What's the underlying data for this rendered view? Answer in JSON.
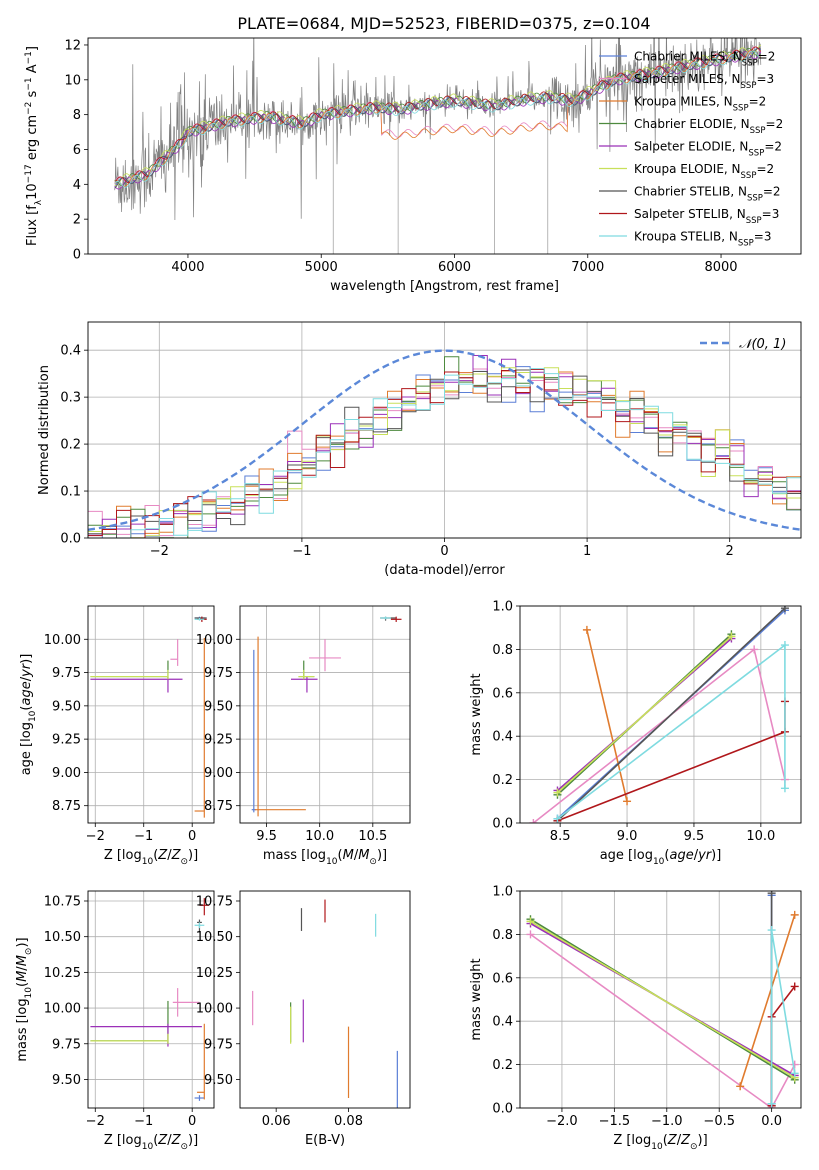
{
  "title": "PLATE=0684, MJD=52523, FIBERID=0375, z=0.104",
  "series": [
    {
      "name": "Chabrier MILES, N$_{SSP}$=2",
      "label": "Chabrier MILES, N",
      "sub": "SSP",
      "n": "=2",
      "color": "#5b7fd6"
    },
    {
      "name": "Salpeter MILES, N$_{SSP}$=3",
      "label": "Salpeter MILES, N",
      "sub": "SSP",
      "n": "=3",
      "color": "#e78ac3"
    },
    {
      "name": "Kroupa MILES, N$_{SSP}$=2",
      "label": "Kroupa MILES, N",
      "sub": "SSP",
      "n": "=2",
      "color": "#e07b2e"
    },
    {
      "name": "Chabrier ELODIE, N$_{SSP}$=2",
      "label": "Chabrier ELODIE, N",
      "sub": "SSP",
      "n": "=2",
      "color": "#4d8a3e"
    },
    {
      "name": "Salpeter ELODIE, N$_{SSP}$=2",
      "label": "Salpeter ELODIE, N",
      "sub": "SSP",
      "n": "=2",
      "color": "#9b30b8"
    },
    {
      "name": "Kroupa ELODIE, N$_{SSP}$=2",
      "label": "Kroupa ELODIE, N",
      "sub": "SSP",
      "n": "=2",
      "color": "#c8e05a"
    },
    {
      "name": "Chabrier STELIB, N$_{SSP}$=2",
      "label": "Chabrier STELIB, N",
      "sub": "SSP",
      "n": "=2",
      "color": "#555555"
    },
    {
      "name": "Salpeter STELIB, N$_{SSP}$=3",
      "label": "Salpeter STELIB, N",
      "sub": "SSP",
      "n": "=3",
      "color": "#b0171b"
    },
    {
      "name": "Kroupa STELIB, N$_{SSP}$=3",
      "label": "Kroupa STELIB, N",
      "sub": "SSP",
      "n": "=3",
      "color": "#7fdbe0"
    }
  ],
  "chart_data": [
    {
      "id": "spectrum",
      "type": "line",
      "xlabel": "wavelength [Angstrom, rest frame]",
      "ylabel": "Flux [f_λ10^-17 erg cm^-2 s^-1 A^-1]",
      "xlim": [
        3250,
        8600
      ],
      "ylim": [
        0,
        12.4
      ],
      "xticks": [
        4000,
        5000,
        6000,
        7000,
        8000
      ],
      "yticks": [
        0,
        2,
        4,
        6,
        8,
        10,
        12
      ],
      "grid": false,
      "legend": "top-right",
      "data_anchor": {
        "x": [
          3450,
          3700,
          3950,
          4000,
          4300,
          4600,
          4860,
          5000,
          5200,
          5400,
          5600,
          5800,
          6000,
          6300,
          6560,
          6700,
          6900,
          7200,
          7500,
          7800,
          8000,
          8200,
          8300
        ],
        "y": [
          4.0,
          4.6,
          6.4,
          7.0,
          7.6,
          7.9,
          7.5,
          8.0,
          8.2,
          8.4,
          8.3,
          8.6,
          8.8,
          8.5,
          8.9,
          9.0,
          8.8,
          10.0,
          10.4,
          10.9,
          11.2,
          11.5,
          11.6
        ]
      },
      "model_offsets": [
        0,
        0.1,
        -0.05,
        0.05,
        -0.1,
        0.15,
        -0.02,
        0.08,
        -0.12
      ],
      "model_mid_dip_series": [
        1,
        2
      ],
      "model_mid_dip": {
        "x_range": [
          5450,
          6850
        ],
        "factor": 0.82
      }
    },
    {
      "id": "residuals",
      "type": "step",
      "xlabel": "(data-model)/error",
      "ylabel": "Normed distribution",
      "xlim": [
        -2.5,
        2.5
      ],
      "ylim": [
        0,
        0.46
      ],
      "xticks": [
        -2,
        -1,
        0,
        1,
        2
      ],
      "yticks": [
        0.0,
        0.1,
        0.2,
        0.3,
        0.4
      ],
      "grid": true,
      "legend": "top-right",
      "normal_label": "N(0, 1)",
      "normal_color": "#5b88d8",
      "bin_width": 0.1,
      "hist_shape": {
        "peak_center": 0.35,
        "sigma_left": 1.05,
        "sigma_right": 1.35,
        "peak": 0.34
      }
    },
    {
      "id": "age-vs-Z",
      "type": "errorbar",
      "xlabel": "Z [log10(Z/Z☉)]",
      "ylabel": "age  [log10(age/yr)]",
      "xlim": [
        -2.15,
        0.45
      ],
      "ylim": [
        8.62,
        10.25
      ],
      "xticks": [
        -2,
        -1,
        0
      ],
      "yticks": [
        8.75,
        9.0,
        9.25,
        9.5,
        9.75,
        10.0
      ],
      "grid": true,
      "points": [
        {
          "s": 0,
          "x": 0.15,
          "y": 10.16,
          "xerr": [
            0.1,
            0.12
          ],
          "yerr": [
            0.01,
            0.01
          ]
        },
        {
          "s": 1,
          "x": -0.3,
          "y": 9.85,
          "xerr": [
            0.15,
            0.0
          ],
          "yerr": [
            0.05,
            0.15
          ]
        },
        {
          "s": 2,
          "x": 0.25,
          "y": 8.71,
          "xerr": [
            0.2,
            0.0
          ],
          "yerr": [
            0.05,
            1.3
          ]
        },
        {
          "s": 3,
          "x": -0.5,
          "y": 9.72,
          "xerr": [
            1.6,
            0.0
          ],
          "yerr": [
            0.02,
            0.12
          ]
        },
        {
          "s": 4,
          "x": -0.5,
          "y": 9.7,
          "xerr": [
            1.6,
            0.3
          ],
          "yerr": [
            0.1,
            0.02
          ]
        },
        {
          "s": 5,
          "x": -0.5,
          "y": 9.72,
          "xerr": [
            1.6,
            0.0
          ],
          "yerr": [
            0.02,
            0.05
          ]
        },
        {
          "s": 6,
          "x": 0.2,
          "y": 10.16,
          "xerr": [
            0.15,
            0.1
          ],
          "yerr": [
            0.02,
            0.01
          ]
        },
        {
          "s": 7,
          "x": 0.2,
          "y": 10.15,
          "xerr": [
            0.1,
            0.1
          ],
          "yerr": [
            0.02,
            0.02
          ]
        },
        {
          "s": 8,
          "x": 0.15,
          "y": 10.15,
          "xerr": [
            0.1,
            0.1
          ],
          "yerr": [
            0.01,
            0.01
          ]
        }
      ]
    },
    {
      "id": "age-vs-mass",
      "type": "errorbar",
      "xlabel": "mass [log10(M/M☉)]",
      "ylabel": "",
      "xlim": [
        9.25,
        10.85
      ],
      "ylim": [
        8.62,
        10.25
      ],
      "xticks": [
        9.5,
        10.0,
        10.5
      ],
      "yticks": [
        8.75,
        9.0,
        9.25,
        9.5,
        9.75,
        10.0
      ],
      "grid": true,
      "points": [
        {
          "s": 0,
          "x": 9.38,
          "y": 8.72,
          "xerr": [
            0.02,
            0.02
          ],
          "yerr": [
            0.02,
            1.2
          ]
        },
        {
          "s": 1,
          "x": 10.05,
          "y": 9.86,
          "xerr": [
            0.15,
            0.15
          ],
          "yerr": [
            0.1,
            0.14
          ]
        },
        {
          "s": 2,
          "x": 9.42,
          "y": 8.72,
          "xerr": [
            0.03,
            0.45
          ],
          "yerr": [
            0.05,
            1.3
          ]
        },
        {
          "s": 3,
          "x": 9.85,
          "y": 9.72,
          "xerr": [
            0.05,
            0.1
          ],
          "yerr": [
            0.02,
            0.12
          ]
        },
        {
          "s": 4,
          "x": 9.88,
          "y": 9.7,
          "xerr": [
            0.15,
            0.1
          ],
          "yerr": [
            0.1,
            0.02
          ]
        },
        {
          "s": 5,
          "x": 9.85,
          "y": 9.72,
          "xerr": [
            0.05,
            0.1
          ],
          "yerr": [
            0.02,
            0.05
          ]
        },
        {
          "s": 6,
          "x": 10.62,
          "y": 10.16,
          "xerr": [
            0.05,
            0.1
          ],
          "yerr": [
            0.02,
            0.01
          ]
        },
        {
          "s": 7,
          "x": 10.72,
          "y": 10.15,
          "xerr": [
            0.05,
            0.05
          ],
          "yerr": [
            0.02,
            0.02
          ]
        },
        {
          "s": 8,
          "x": 10.62,
          "y": 10.16,
          "xerr": [
            0.05,
            0.05
          ],
          "yerr": [
            0.01,
            0.01
          ]
        }
      ]
    },
    {
      "id": "weight-vs-age",
      "type": "line",
      "xlabel": "age  [log10(age/yr)]",
      "ylabel": "mass weight",
      "xlim": [
        8.2,
        10.3
      ],
      "ylim": [
        0,
        1.0
      ],
      "xticks": [
        8.5,
        9.0,
        9.5,
        10.0
      ],
      "yticks": [
        0.0,
        0.2,
        0.4,
        0.6,
        0.8,
        1.0
      ],
      "grid": true,
      "lines": [
        {
          "s": 0,
          "x": [
            8.48,
            10.18
          ],
          "y": [
            0.02,
            0.98
          ]
        },
        {
          "s": 1,
          "x": [
            8.3,
            9.95,
            10.18
          ],
          "y": [
            0.0,
            0.8,
            0.2
          ]
        },
        {
          "s": 2,
          "x": [
            8.7,
            9.0
          ],
          "y": [
            0.89,
            0.1
          ]
        },
        {
          "s": 3,
          "x": [
            8.48,
            9.78
          ],
          "y": [
            0.13,
            0.87
          ]
        },
        {
          "s": 4,
          "x": [
            8.48,
            9.78
          ],
          "y": [
            0.15,
            0.85
          ]
        },
        {
          "s": 5,
          "x": [
            8.48,
            9.78
          ],
          "y": [
            0.14,
            0.86
          ]
        },
        {
          "s": 6,
          "x": [
            8.48,
            10.18
          ],
          "y": [
            0.01,
            0.99
          ]
        },
        {
          "s": 7,
          "x": [
            8.48,
            10.18,
            10.18
          ],
          "y": [
            0.01,
            0.42,
            0.56
          ]
        },
        {
          "s": 8,
          "x": [
            8.48,
            10.18,
            10.18
          ],
          "y": [
            0.02,
            0.82,
            0.16
          ]
        }
      ]
    },
    {
      "id": "mass-vs-Z",
      "type": "errorbar",
      "xlabel": "Z [log10(Z/Z☉)]",
      "ylabel": "mass [log10(M/M☉)]",
      "xlim": [
        -2.15,
        0.45
      ],
      "ylim": [
        9.3,
        10.82
      ],
      "xticks": [
        -2,
        -1,
        0
      ],
      "yticks": [
        9.5,
        9.75,
        10.0,
        10.25,
        10.5,
        10.75
      ],
      "grid": true,
      "points": [
        {
          "s": 0,
          "x": 0.15,
          "y": 9.37,
          "xerr": [
            0.1,
            0.1
          ],
          "yerr": [
            0.02,
            0.02
          ]
        },
        {
          "s": 1,
          "x": -0.3,
          "y": 10.04,
          "xerr": [
            0.1,
            0.45
          ],
          "yerr": [
            0.1,
            0.1
          ]
        },
        {
          "s": 2,
          "x": 0.25,
          "y": 9.41,
          "xerr": [
            0.15,
            0.0
          ],
          "yerr": [
            0.05,
            0.48
          ]
        },
        {
          "s": 3,
          "x": -0.5,
          "y": 9.77,
          "xerr": [
            1.6,
            0.0
          ],
          "yerr": [
            0.02,
            0.28
          ]
        },
        {
          "s": 4,
          "x": -0.5,
          "y": 9.87,
          "xerr": [
            1.6,
            0.7
          ],
          "yerr": [
            0.14,
            0.02
          ]
        },
        {
          "s": 5,
          "x": -0.5,
          "y": 9.77,
          "xerr": [
            1.6,
            0.0
          ],
          "yerr": [
            0.02,
            0.05
          ]
        },
        {
          "s": 6,
          "x": 0.15,
          "y": 10.6,
          "xerr": [
            0.05,
            0.05
          ],
          "yerr": [
            0.07,
            0.02
          ]
        },
        {
          "s": 7,
          "x": 0.25,
          "y": 10.72,
          "xerr": [
            0.1,
            0.1
          ],
          "yerr": [
            0.07,
            0.05
          ]
        },
        {
          "s": 8,
          "x": 0.15,
          "y": 10.58,
          "xerr": [
            0.1,
            0.1
          ],
          "yerr": [
            0.02,
            0.02
          ]
        }
      ]
    },
    {
      "id": "mass-vs-ebv",
      "type": "errorbar",
      "xlabel": "E(B-V)",
      "ylabel": "",
      "xlim": [
        0.05,
        0.097
      ],
      "ylim": [
        9.3,
        10.82
      ],
      "xticks": [
        0.06,
        0.08
      ],
      "yticks": [
        9.5,
        9.75,
        10.0,
        10.25,
        10.5,
        10.75
      ],
      "grid": false,
      "points": [
        {
          "s": 0,
          "x": 0.0935,
          "y": 9.5,
          "xerr": [
            0,
            0
          ],
          "yerr": [
            0.2,
            0.2
          ]
        },
        {
          "s": 1,
          "x": 0.0535,
          "y": 10.0,
          "xerr": [
            0,
            0
          ],
          "yerr": [
            0.12,
            0.12
          ]
        },
        {
          "s": 2,
          "x": 0.08,
          "y": 9.62,
          "xerr": [
            0,
            0
          ],
          "yerr": [
            0.25,
            0.25
          ]
        },
        {
          "s": 3,
          "x": 0.064,
          "y": 9.9,
          "xerr": [
            0,
            0
          ],
          "yerr": [
            0.14,
            0.14
          ]
        },
        {
          "s": 4,
          "x": 0.0675,
          "y": 9.91,
          "xerr": [
            0,
            0
          ],
          "yerr": [
            0.15,
            0.15
          ]
        },
        {
          "s": 5,
          "x": 0.064,
          "y": 9.88,
          "xerr": [
            0,
            0
          ],
          "yerr": [
            0.13,
            0.13
          ]
        },
        {
          "s": 6,
          "x": 0.067,
          "y": 10.62,
          "xerr": [
            0,
            0
          ],
          "yerr": [
            0.08,
            0.08
          ]
        },
        {
          "s": 7,
          "x": 0.0735,
          "y": 10.68,
          "xerr": [
            0,
            0
          ],
          "yerr": [
            0.08,
            0.08
          ]
        },
        {
          "s": 8,
          "x": 0.0875,
          "y": 10.58,
          "xerr": [
            0,
            0
          ],
          "yerr": [
            0.08,
            0.08
          ]
        }
      ]
    },
    {
      "id": "weight-vs-Z",
      "type": "line",
      "xlabel": "Z [log10(Z/Z☉)]",
      "ylabel": "mass weight",
      "xlim": [
        -2.4,
        0.28
      ],
      "ylim": [
        0,
        1.0
      ],
      "xticks": [
        -2.0,
        -1.5,
        -1.0,
        -0.5,
        0.0
      ],
      "yticks": [
        0.0,
        0.2,
        0.4,
        0.6,
        0.8,
        1.0
      ],
      "grid": true,
      "lines": [
        {
          "s": 0,
          "x": [
            0.0,
            0.0
          ],
          "y": [
            0.02,
            0.98
          ]
        },
        {
          "s": 1,
          "x": [
            -2.3,
            0.0,
            0.22
          ],
          "y": [
            0.8,
            0.0,
            0.2
          ]
        },
        {
          "s": 2,
          "x": [
            -0.3,
            0.22
          ],
          "y": [
            0.1,
            0.89
          ]
        },
        {
          "s": 3,
          "x": [
            -2.3,
            0.22
          ],
          "y": [
            0.87,
            0.13
          ]
        },
        {
          "s": 4,
          "x": [
            -2.3,
            0.22
          ],
          "y": [
            0.85,
            0.15
          ]
        },
        {
          "s": 5,
          "x": [
            -2.3,
            0.22
          ],
          "y": [
            0.86,
            0.14
          ]
        },
        {
          "s": 6,
          "x": [
            0.0,
            0.0
          ],
          "y": [
            0.01,
            0.99
          ]
        },
        {
          "s": 7,
          "x": [
            0.0,
            0.0,
            0.22
          ],
          "y": [
            0.01,
            0.42,
            0.56
          ]
        },
        {
          "s": 8,
          "x": [
            0.0,
            0.0,
            0.22
          ],
          "y": [
            0.02,
            0.82,
            0.16
          ]
        }
      ]
    }
  ]
}
